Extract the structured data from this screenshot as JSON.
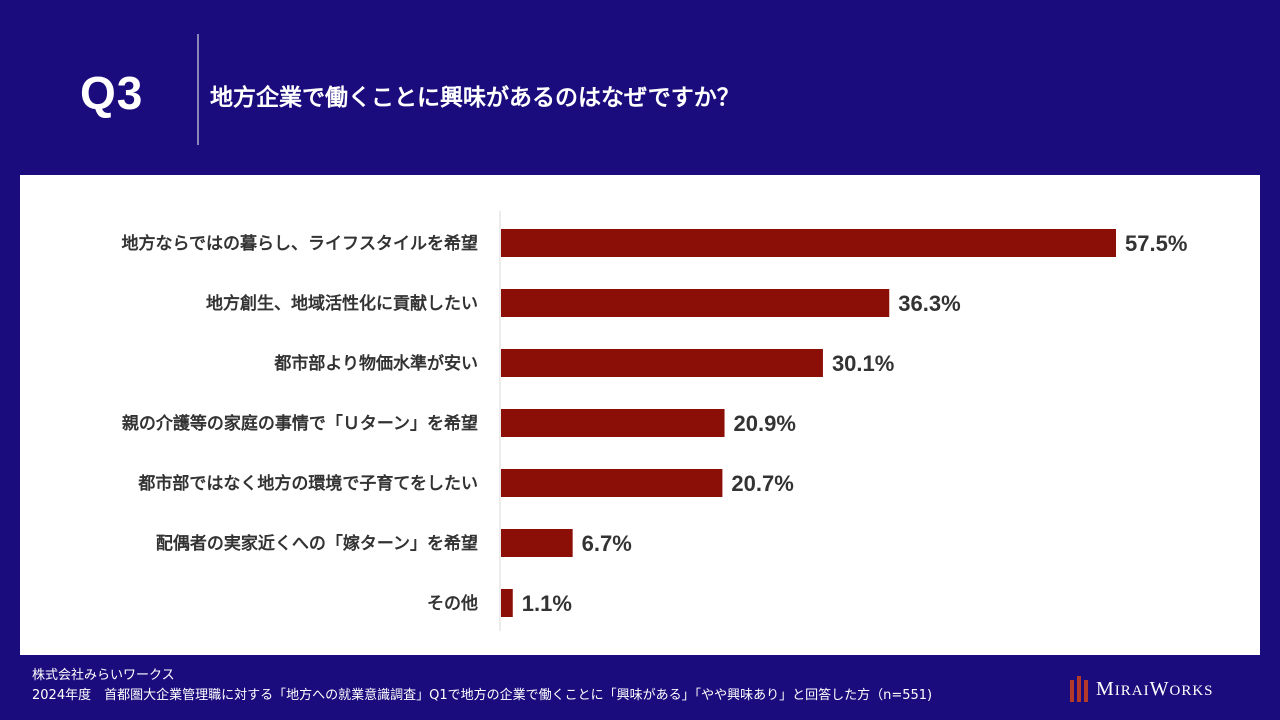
{
  "header": {
    "q_label": "Q3",
    "title": "地方企業で働くことに興味があるのはなぜですか？"
  },
  "chart_data": {
    "type": "bar",
    "orientation": "horizontal",
    "categories": [
      "地方ならではの暮らし、ライフスタイルを希望",
      "地方創生、地域活性化に貢献したい",
      "都市部より物価水準が安い",
      "親の介護等の家庭の事情で「Ｕターン」を希望",
      "都市部ではなく地方の環境で子育てをしたい",
      "配偶者の実家近くへの「嫁ターン」を希望",
      "その他"
    ],
    "values": [
      57.5,
      36.3,
      30.1,
      20.9,
      20.7,
      6.7,
      1.1
    ],
    "value_labels": [
      "57.5%",
      "36.3%",
      "30.1%",
      "20.9%",
      "20.7%",
      "6.7%",
      "1.1%"
    ],
    "xlim": [
      0,
      60
    ],
    "bar_color": "#8b0f06",
    "grid": false
  },
  "footer": {
    "company": "株式会社みらいワークス",
    "source": "2024年度　首都圏大企業管理職に対する「地方への就業意識調査」Q1で地方の企業で働くことに「興味がある」「やや興味あり」と回答した方（n=551)"
  },
  "logo": {
    "text": "MiraiWorks"
  },
  "colors": {
    "background": "#1a0c7c",
    "panel": "#ffffff",
    "bar": "#8b0f06",
    "label_text": "#333333"
  }
}
